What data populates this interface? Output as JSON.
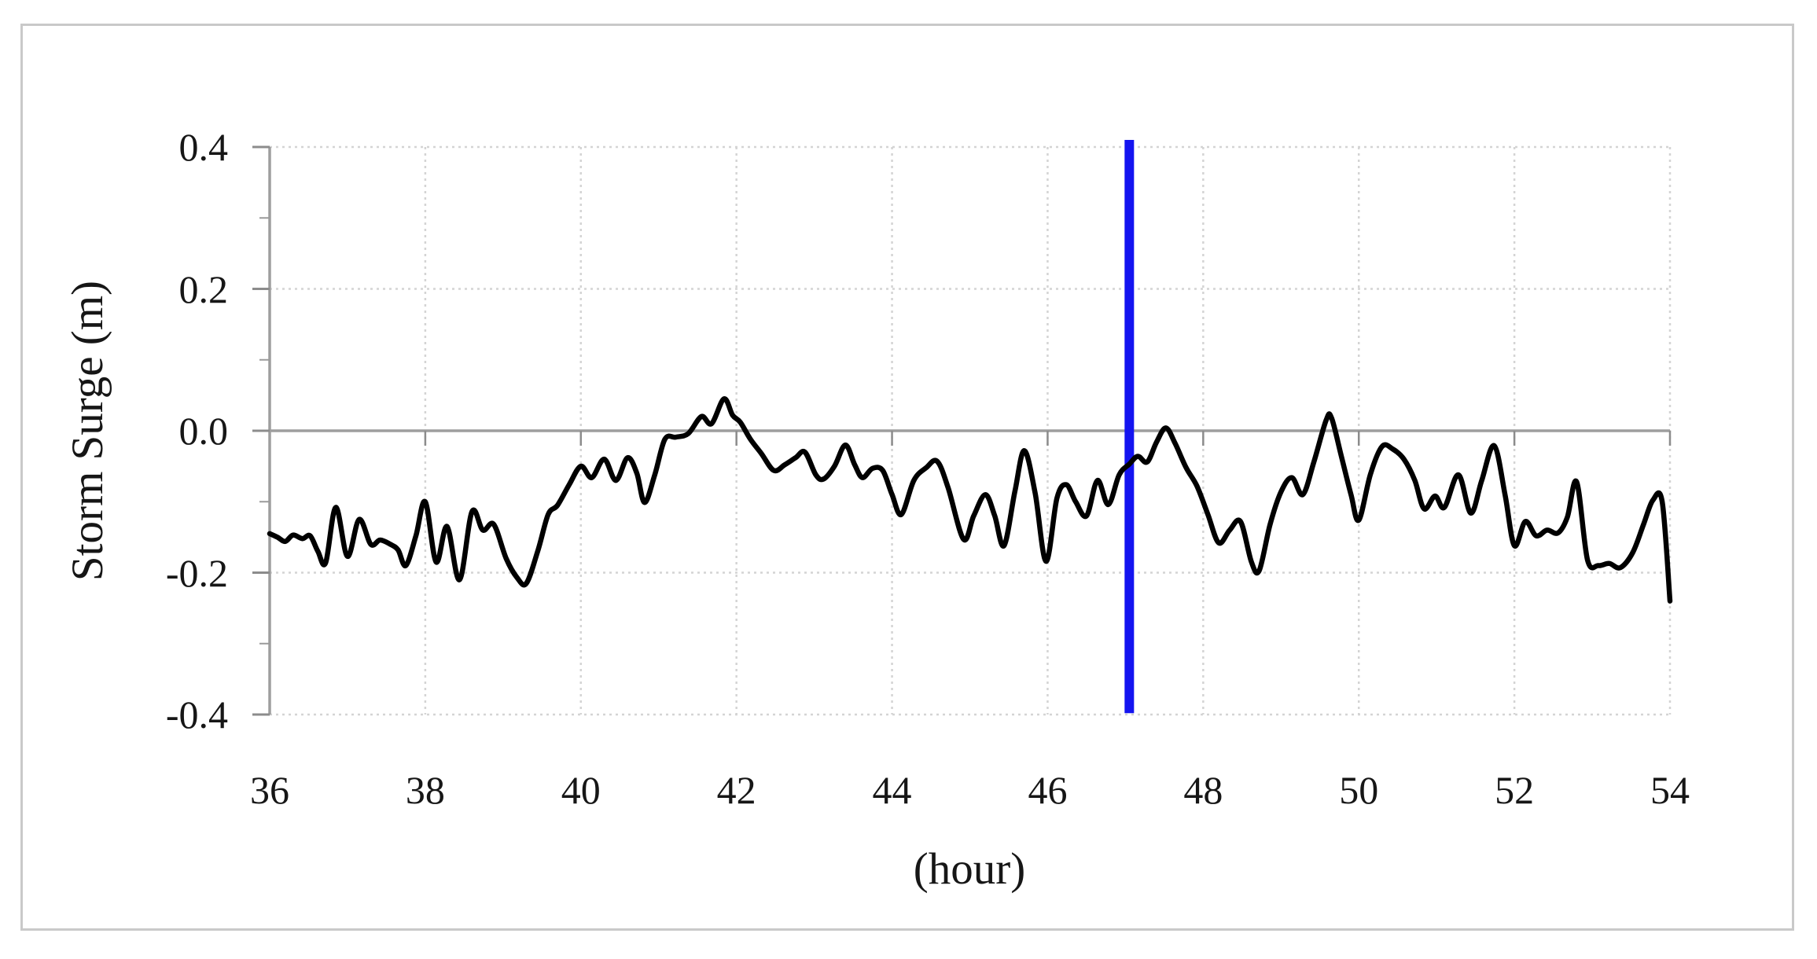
{
  "figure": {
    "background": "#ffffff",
    "border_color": "#c9c9c9"
  },
  "chart_data": {
    "type": "line",
    "title": "",
    "xlabel": "(hour)",
    "ylabel": "Storm Surge (m)",
    "xlim": [
      36,
      54
    ],
    "ylim": [
      -0.4,
      0.4
    ],
    "x_tick_labels": [
      "36",
      "38",
      "40",
      "42",
      "44",
      "46",
      "48",
      "50",
      "52",
      "54"
    ],
    "x_tick_values": [
      36,
      38,
      40,
      42,
      44,
      46,
      48,
      50,
      52,
      54
    ],
    "y_tick_labels": [
      "0.4",
      "0.2",
      "0.0",
      "-0.2",
      "-0.4"
    ],
    "y_tick_values": [
      0.4,
      0.2,
      0.0,
      -0.2,
      -0.4
    ],
    "y_minor_tick_values": [
      0.3,
      0.1,
      -0.1,
      -0.3
    ],
    "grid": {
      "horizontal_major": [
        0.4,
        0.2,
        -0.2,
        -0.4
      ],
      "zero_line": 0.0,
      "vertical_major": [
        38,
        40,
        42,
        44,
        46,
        48,
        50,
        52,
        54
      ],
      "style": "dashed",
      "gridline_color": "#d4d4d4",
      "axis_color": "#9e9e9e",
      "legend_position": "none"
    },
    "series": [
      {
        "name": "storm surge",
        "color": "#000000",
        "points": [
          [
            36.0,
            -0.145
          ],
          [
            36.1,
            -0.15
          ],
          [
            36.2,
            -0.156
          ],
          [
            36.3,
            -0.147
          ],
          [
            36.42,
            -0.152
          ],
          [
            36.52,
            -0.148
          ],
          [
            36.62,
            -0.17
          ],
          [
            36.72,
            -0.186
          ],
          [
            36.85,
            -0.108
          ],
          [
            37.0,
            -0.177
          ],
          [
            37.15,
            -0.125
          ],
          [
            37.3,
            -0.16
          ],
          [
            37.42,
            -0.154
          ],
          [
            37.55,
            -0.16
          ],
          [
            37.65,
            -0.168
          ],
          [
            37.75,
            -0.19
          ],
          [
            37.88,
            -0.148
          ],
          [
            38.0,
            -0.1
          ],
          [
            38.14,
            -0.185
          ],
          [
            38.28,
            -0.135
          ],
          [
            38.44,
            -0.21
          ],
          [
            38.6,
            -0.114
          ],
          [
            38.74,
            -0.14
          ],
          [
            38.88,
            -0.132
          ],
          [
            39.04,
            -0.18
          ],
          [
            39.18,
            -0.207
          ],
          [
            39.3,
            -0.215
          ],
          [
            39.45,
            -0.168
          ],
          [
            39.58,
            -0.118
          ],
          [
            39.7,
            -0.105
          ],
          [
            39.85,
            -0.076
          ],
          [
            40.0,
            -0.05
          ],
          [
            40.14,
            -0.066
          ],
          [
            40.3,
            -0.04
          ],
          [
            40.45,
            -0.07
          ],
          [
            40.6,
            -0.038
          ],
          [
            40.72,
            -0.06
          ],
          [
            40.82,
            -0.101
          ],
          [
            40.95,
            -0.062
          ],
          [
            41.08,
            -0.012
          ],
          [
            41.22,
            -0.009
          ],
          [
            41.38,
            -0.004
          ],
          [
            41.55,
            0.02
          ],
          [
            41.68,
            0.01
          ],
          [
            41.84,
            0.045
          ],
          [
            41.95,
            0.022
          ],
          [
            42.05,
            0.012
          ],
          [
            42.18,
            -0.012
          ],
          [
            42.32,
            -0.032
          ],
          [
            42.48,
            -0.056
          ],
          [
            42.62,
            -0.048
          ],
          [
            42.76,
            -0.038
          ],
          [
            42.88,
            -0.03
          ],
          [
            43.02,
            -0.062
          ],
          [
            43.12,
            -0.068
          ],
          [
            43.26,
            -0.05
          ],
          [
            43.4,
            -0.02
          ],
          [
            43.52,
            -0.048
          ],
          [
            43.62,
            -0.066
          ],
          [
            43.75,
            -0.053
          ],
          [
            43.88,
            -0.056
          ],
          [
            44.0,
            -0.09
          ],
          [
            44.12,
            -0.118
          ],
          [
            44.28,
            -0.07
          ],
          [
            44.44,
            -0.052
          ],
          [
            44.58,
            -0.043
          ],
          [
            44.72,
            -0.08
          ],
          [
            44.92,
            -0.153
          ],
          [
            45.05,
            -0.12
          ],
          [
            45.2,
            -0.09
          ],
          [
            45.32,
            -0.12
          ],
          [
            45.44,
            -0.162
          ],
          [
            45.58,
            -0.085
          ],
          [
            45.7,
            -0.028
          ],
          [
            45.84,
            -0.088
          ],
          [
            45.98,
            -0.184
          ],
          [
            46.12,
            -0.095
          ],
          [
            46.24,
            -0.076
          ],
          [
            46.36,
            -0.1
          ],
          [
            46.5,
            -0.12
          ],
          [
            46.64,
            -0.07
          ],
          [
            46.78,
            -0.104
          ],
          [
            46.92,
            -0.062
          ],
          [
            47.05,
            -0.047
          ],
          [
            47.16,
            -0.036
          ],
          [
            47.28,
            -0.044
          ],
          [
            47.4,
            -0.016
          ],
          [
            47.52,
            0.004
          ],
          [
            47.64,
            -0.018
          ],
          [
            47.78,
            -0.052
          ],
          [
            47.92,
            -0.078
          ],
          [
            48.06,
            -0.118
          ],
          [
            48.2,
            -0.158
          ],
          [
            48.34,
            -0.14
          ],
          [
            48.48,
            -0.128
          ],
          [
            48.62,
            -0.185
          ],
          [
            48.72,
            -0.197
          ],
          [
            48.86,
            -0.132
          ],
          [
            49.0,
            -0.086
          ],
          [
            49.14,
            -0.066
          ],
          [
            49.28,
            -0.09
          ],
          [
            49.42,
            -0.045
          ],
          [
            49.58,
            0.015
          ],
          [
            49.65,
            0.018
          ],
          [
            49.78,
            -0.038
          ],
          [
            49.9,
            -0.09
          ],
          [
            50.0,
            -0.126
          ],
          [
            50.15,
            -0.061
          ],
          [
            50.3,
            -0.022
          ],
          [
            50.44,
            -0.026
          ],
          [
            50.58,
            -0.04
          ],
          [
            50.72,
            -0.07
          ],
          [
            50.84,
            -0.11
          ],
          [
            50.98,
            -0.092
          ],
          [
            51.1,
            -0.108
          ],
          [
            51.28,
            -0.062
          ],
          [
            51.44,
            -0.116
          ],
          [
            51.58,
            -0.07
          ],
          [
            51.74,
            -0.021
          ],
          [
            51.88,
            -0.09
          ],
          [
            52.0,
            -0.162
          ],
          [
            52.14,
            -0.128
          ],
          [
            52.28,
            -0.148
          ],
          [
            52.42,
            -0.14
          ],
          [
            52.56,
            -0.144
          ],
          [
            52.68,
            -0.122
          ],
          [
            52.8,
            -0.072
          ],
          [
            52.94,
            -0.182
          ],
          [
            53.08,
            -0.19
          ],
          [
            53.22,
            -0.187
          ],
          [
            53.36,
            -0.193
          ],
          [
            53.52,
            -0.172
          ],
          [
            53.66,
            -0.132
          ],
          [
            53.78,
            -0.098
          ],
          [
            53.9,
            -0.1
          ],
          [
            54.0,
            -0.24
          ]
        ]
      }
    ],
    "annotations": [
      {
        "type": "vline",
        "x": 47.05,
        "color": "#1414f0",
        "y_extent": [
          -0.398,
          0.41
        ]
      }
    ]
  }
}
